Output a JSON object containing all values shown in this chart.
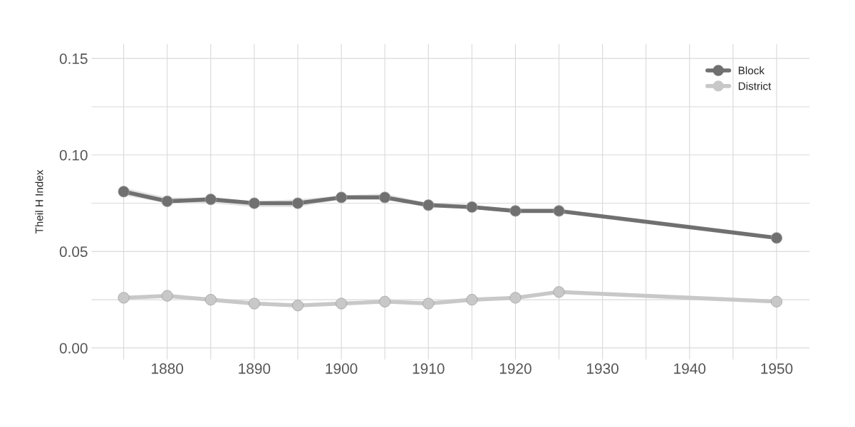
{
  "chart_data": {
    "type": "line",
    "ylabel": "Theil H Index",
    "x": [
      1875,
      1880,
      1885,
      1890,
      1895,
      1900,
      1905,
      1910,
      1915,
      1920,
      1925,
      1950
    ],
    "series": [
      {
        "name": "Block",
        "color": "#707070",
        "values": [
          0.081,
          0.076,
          0.077,
          0.075,
          0.075,
          0.078,
          0.078,
          0.074,
          0.073,
          0.071,
          0.071,
          0.057
        ],
        "lower": [
          0.079,
          0.075,
          0.075,
          0.073,
          0.073,
          0.077,
          0.077,
          0.073,
          0.072,
          0.07,
          0.07,
          0.057
        ],
        "upper": [
          0.083,
          0.078,
          0.078,
          0.076,
          0.077,
          0.079,
          0.08,
          0.075,
          0.074,
          0.072,
          0.072,
          0.057
        ]
      },
      {
        "name": "District",
        "color": "#c8c8c8",
        "values": [
          0.026,
          0.027,
          0.025,
          0.023,
          0.022,
          0.023,
          0.024,
          0.023,
          0.025,
          0.026,
          0.029,
          0.024
        ]
      }
    ],
    "xlim": [
      1871.3,
      1953.8
    ],
    "ylim": [
      -0.006,
      0.1575
    ],
    "xticks": [
      {
        "value": 1875,
        "label": null
      },
      1880,
      {
        "value": 1885,
        "label": null
      },
      1890,
      {
        "value": 1895,
        "label": null
      },
      1900,
      {
        "value": 1905,
        "label": null
      },
      1910,
      {
        "value": 1915,
        "label": null
      },
      1920,
      {
        "value": 1925,
        "label": null
      },
      1930,
      {
        "value": 1935,
        "label": null
      },
      1940,
      {
        "value": 1945,
        "label": null
      },
      1950
    ],
    "yticks": [
      {
        "value": 0,
        "label": "0.00"
      },
      {
        "value": 0.025,
        "label": null
      },
      {
        "value": 0.05,
        "label": "0.05"
      },
      {
        "value": 0.075,
        "label": null
      },
      {
        "value": 0.1,
        "label": "0.10"
      },
      {
        "value": 0.125,
        "label": null
      },
      {
        "value": 0.15,
        "label": "0.15"
      }
    ],
    "grid": true,
    "legend": "top right",
    "marker": "circle",
    "line_style": "solid"
  }
}
